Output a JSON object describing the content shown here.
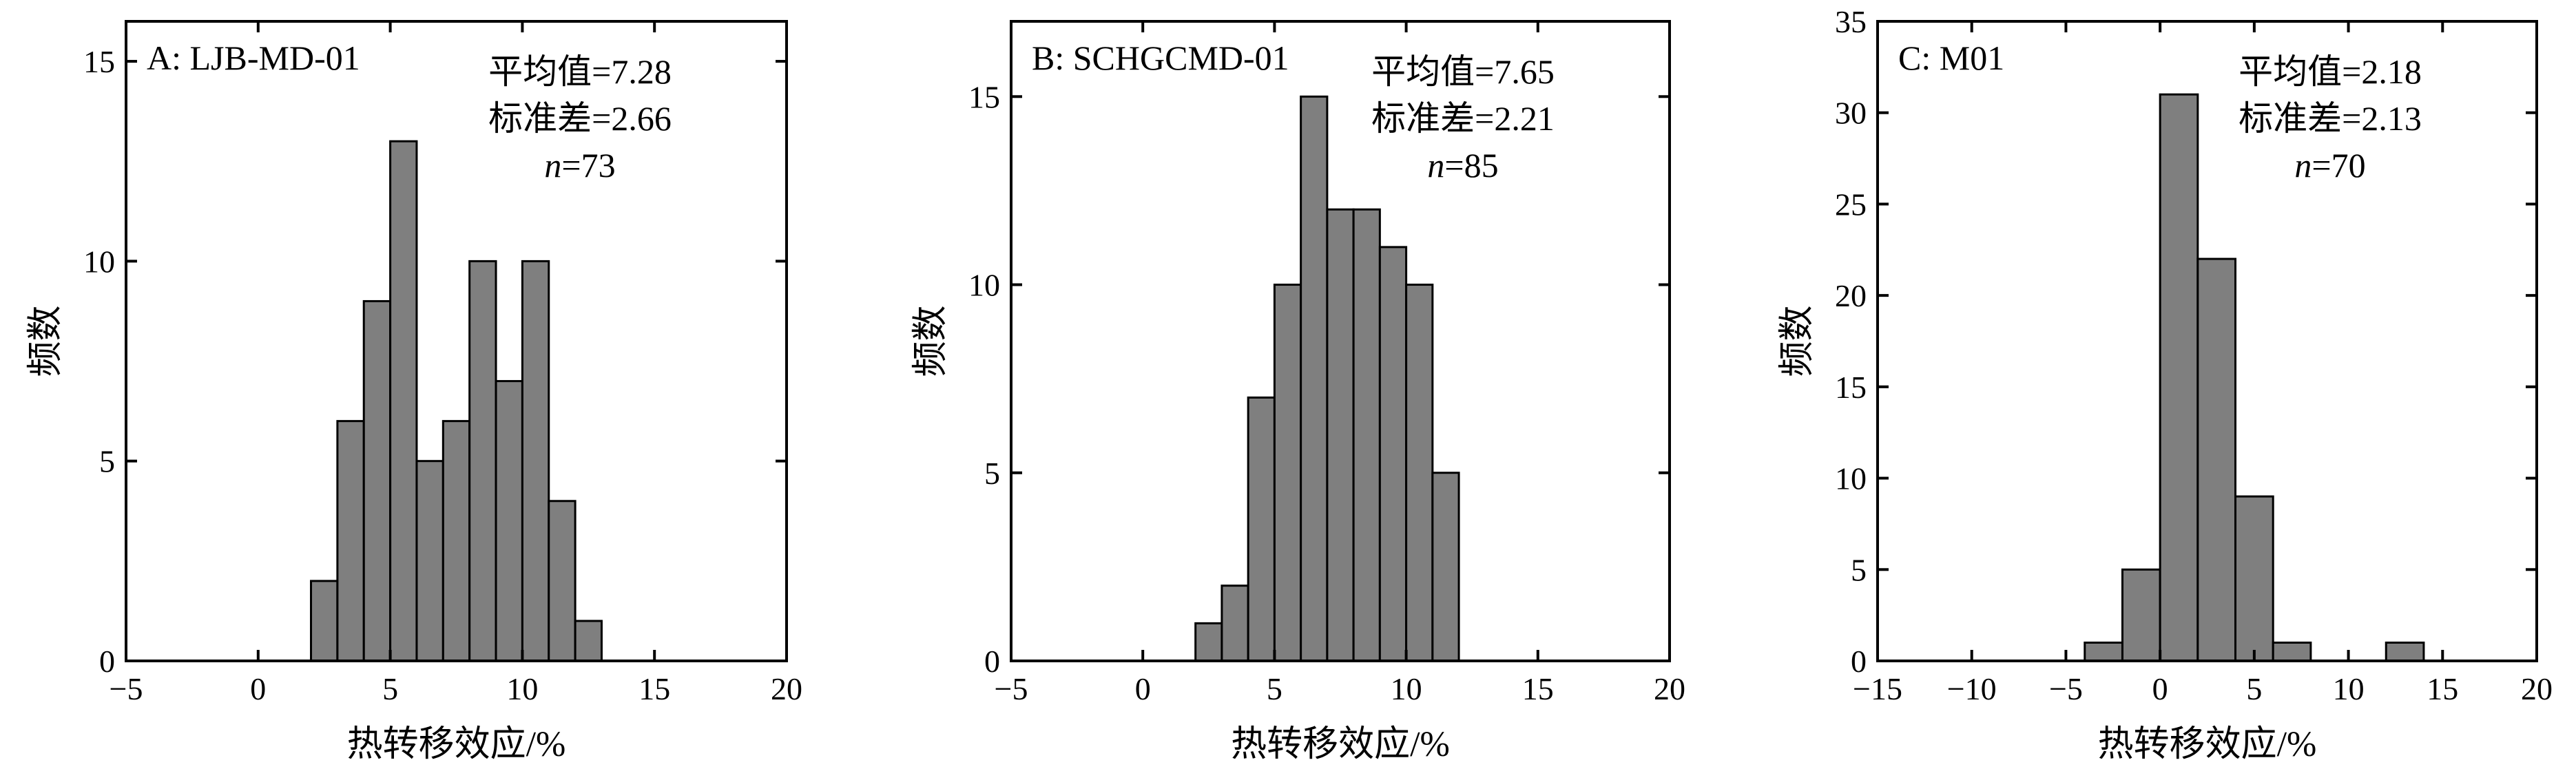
{
  "colors": {
    "bar_fill": "#7f7f7f",
    "bar_stroke": "#000000",
    "axis": "#000000"
  },
  "chart_data": [
    {
      "type": "bar",
      "panel_label": "A: LJB-MD-01",
      "stats": {
        "mean_label": "平均值=7.28",
        "std_label": "标准差=2.66",
        "n_symbol": "n",
        "n_value": "=73"
      },
      "xlabel": "热转移效应/%",
      "ylabel": "频数",
      "xlim": [
        -5,
        20
      ],
      "ylim": [
        0,
        16
      ],
      "xticks": [
        -5,
        0,
        5,
        10,
        15,
        20
      ],
      "yticks": [
        0,
        5,
        10,
        15
      ],
      "bin_width": 1,
      "bins": [
        {
          "x0": 2,
          "x1": 3,
          "count": 2
        },
        {
          "x0": 3,
          "x1": 4,
          "count": 6
        },
        {
          "x0": 4,
          "x1": 5,
          "count": 9
        },
        {
          "x0": 5,
          "x1": 6,
          "count": 13
        },
        {
          "x0": 6,
          "x1": 7,
          "count": 5
        },
        {
          "x0": 7,
          "x1": 8,
          "count": 6
        },
        {
          "x0": 8,
          "x1": 9,
          "count": 10
        },
        {
          "x0": 9,
          "x1": 10,
          "count": 7
        },
        {
          "x0": 10,
          "x1": 11,
          "count": 10
        },
        {
          "x0": 11,
          "x1": 12,
          "count": 4
        },
        {
          "x0": 12,
          "x1": 13,
          "count": 1
        }
      ]
    },
    {
      "type": "bar",
      "panel_label": "B: SCHGCMD-01",
      "stats": {
        "mean_label": "平均值=7.65",
        "std_label": "标准差=2.21",
        "n_symbol": "n",
        "n_value": "=85"
      },
      "xlabel": "热转移效应/%",
      "ylabel": "频数",
      "xlim": [
        -5,
        20
      ],
      "ylim": [
        0,
        17
      ],
      "xticks": [
        -5,
        0,
        5,
        10,
        15,
        20
      ],
      "yticks": [
        0,
        5,
        10,
        15
      ],
      "bin_width": 1,
      "bins": [
        {
          "x0": 2,
          "x1": 3,
          "count": 1
        },
        {
          "x0": 3,
          "x1": 4,
          "count": 2
        },
        {
          "x0": 4,
          "x1": 5,
          "count": 7
        },
        {
          "x0": 5,
          "x1": 6,
          "count": 10
        },
        {
          "x0": 6,
          "x1": 7,
          "count": 15
        },
        {
          "x0": 7,
          "x1": 8,
          "count": 12
        },
        {
          "x0": 8,
          "x1": 9,
          "count": 12
        },
        {
          "x0": 9,
          "x1": 10,
          "count": 11
        },
        {
          "x0": 10,
          "x1": 11,
          "count": 10
        },
        {
          "x0": 11,
          "x1": 12,
          "count": 5
        }
      ]
    },
    {
      "type": "bar",
      "panel_label": "C: M01",
      "stats": {
        "mean_label": "平均值=2.18",
        "std_label": "标准差=2.13",
        "n_symbol": "n",
        "n_value": "=70"
      },
      "xlabel": "热转移效应/%",
      "ylabel": "频数",
      "xlim": [
        -15,
        20
      ],
      "ylim": [
        0,
        35
      ],
      "xticks": [
        -15,
        -10,
        -5,
        0,
        5,
        10,
        15,
        20
      ],
      "yticks": [
        0,
        5,
        10,
        15,
        20,
        25,
        30,
        35
      ],
      "bin_width": 2,
      "bins": [
        {
          "x0": -4,
          "x1": -2,
          "count": 1
        },
        {
          "x0": -2,
          "x1": 0,
          "count": 5
        },
        {
          "x0": 0,
          "x1": 2,
          "count": 31
        },
        {
          "x0": 2,
          "x1": 4,
          "count": 22
        },
        {
          "x0": 4,
          "x1": 6,
          "count": 9
        },
        {
          "x0": 6,
          "x1": 8,
          "count": 1
        },
        {
          "x0": 12,
          "x1": 14,
          "count": 1
        }
      ]
    }
  ]
}
